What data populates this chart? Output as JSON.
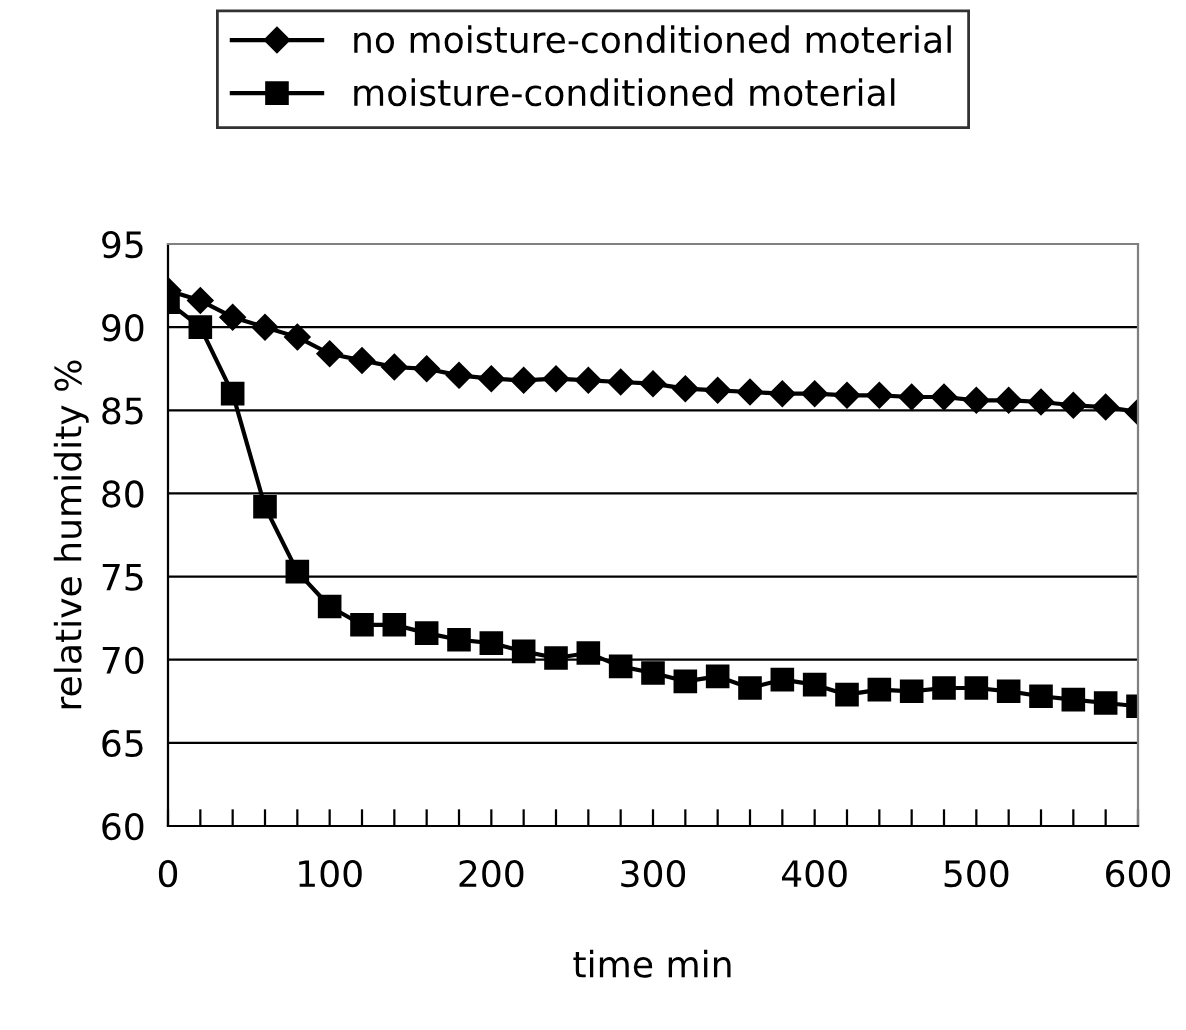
{
  "chart_data": {
    "type": "line",
    "xlabel": "time min",
    "ylabel": "relative humidity %",
    "x": [
      0,
      20,
      40,
      60,
      80,
      100,
      120,
      140,
      160,
      180,
      200,
      220,
      240,
      260,
      280,
      300,
      320,
      340,
      360,
      380,
      400,
      420,
      440,
      460,
      480,
      500,
      520,
      540,
      560,
      580,
      600
    ],
    "series": [
      {
        "name": "no moisture-conditioned moterial",
        "color": "#000000",
        "marker": "diamond",
        "values": [
          92.2,
          91.6,
          90.6,
          90.0,
          89.4,
          88.4,
          88.0,
          87.6,
          87.5,
          87.1,
          86.9,
          86.8,
          86.9,
          86.8,
          86.7,
          86.6,
          86.3,
          86.2,
          86.1,
          86.0,
          86.0,
          85.9,
          85.9,
          85.8,
          85.8,
          85.6,
          85.6,
          85.5,
          85.3,
          85.2,
          84.9
        ]
      },
      {
        "name": "moisture-conditioned moterial",
        "color": "#000000",
        "marker": "square",
        "values": [
          91.5,
          90.0,
          86.0,
          79.2,
          75.3,
          73.2,
          72.1,
          72.1,
          71.6,
          71.2,
          71.0,
          70.5,
          70.1,
          70.4,
          69.6,
          69.2,
          68.7,
          69.0,
          68.3,
          68.8,
          68.5,
          67.9,
          68.2,
          68.1,
          68.3,
          68.3,
          68.1,
          67.8,
          67.6,
          67.4,
          67.2
        ]
      }
    ],
    "xlim": [
      0,
      600
    ],
    "ylim": [
      60,
      95
    ],
    "xticks": [
      0,
      {
        "value": 20,
        "label": null
      },
      {
        "value": 40,
        "label": null
      },
      {
        "value": 60,
        "label": null
      },
      {
        "value": 80,
        "label": null
      },
      100,
      {
        "value": 120,
        "label": null
      },
      {
        "value": 140,
        "label": null
      },
      {
        "value": 160,
        "label": null
      },
      {
        "value": 180,
        "label": null
      },
      200,
      {
        "value": 220,
        "label": null
      },
      {
        "value": 240,
        "label": null
      },
      {
        "value": 260,
        "label": null
      },
      {
        "value": 280,
        "label": null
      },
      300,
      {
        "value": 320,
        "label": null
      },
      {
        "value": 340,
        "label": null
      },
      {
        "value": 360,
        "label": null
      },
      {
        "value": 380,
        "label": null
      },
      400,
      {
        "value": 420,
        "label": null
      },
      {
        "value": 440,
        "label": null
      },
      {
        "value": 460,
        "label": null
      },
      {
        "value": 480,
        "label": null
      },
      500,
      {
        "value": 520,
        "label": null
      },
      {
        "value": 540,
        "label": null
      },
      {
        "value": 560,
        "label": null
      },
      {
        "value": 580,
        "label": null
      },
      600
    ],
    "yticks": [
      60,
      65,
      70,
      75,
      80,
      85,
      90,
      95
    ],
    "grid": "y",
    "legend": "top",
    "line_style": "solid"
  }
}
